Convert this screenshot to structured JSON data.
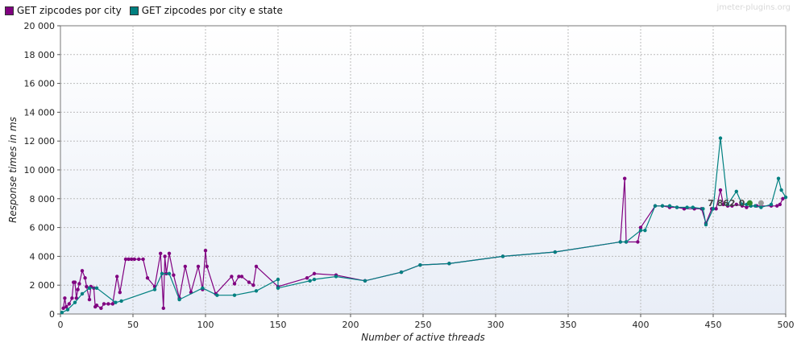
{
  "watermark": "jmeter-plugins.org",
  "colors": {
    "city": "#800080",
    "city_state": "#008080",
    "grid": "#bbbbbb",
    "plot_bg_top": "#ffffff",
    "plot_bg_bottom": "#e9eef7"
  },
  "chart_data": {
    "type": "line",
    "title": "",
    "xlabel": "Number of active threads",
    "ylabel": "Response times in ms",
    "xlim": [
      0,
      500
    ],
    "ylim": [
      0,
      20000
    ],
    "x_ticks": [
      0,
      50,
      100,
      150,
      200,
      250,
      300,
      350,
      400,
      450,
      500
    ],
    "y_ticks": [
      0,
      2000,
      4000,
      6000,
      8000,
      10000,
      12000,
      14000,
      16000,
      18000,
      20000
    ],
    "x_tick_labels": [
      "0",
      "50",
      "100",
      "150",
      "200",
      "250",
      "300",
      "350",
      "400",
      "450",
      "500"
    ],
    "y_tick_labels": [
      "0",
      "2 000",
      "4 000",
      "6 000",
      "8 000",
      "10 000",
      "12 000",
      "14 000",
      "16 000",
      "18 000",
      "20 000"
    ],
    "grid": true,
    "legend_position": "top-left",
    "series": [
      {
        "name": "GET zipcodes por city",
        "color": "#800080",
        "points": [
          [
            2,
            400
          ],
          [
            3,
            1100
          ],
          [
            4,
            500
          ],
          [
            6,
            700
          ],
          [
            8,
            1100
          ],
          [
            9,
            2200
          ],
          [
            10,
            2200
          ],
          [
            11,
            1100
          ],
          [
            12,
            1700
          ],
          [
            13,
            2100
          ],
          [
            15,
            3000
          ],
          [
            17,
            2500
          ],
          [
            18,
            1900
          ],
          [
            20,
            1000
          ],
          [
            21,
            1900
          ],
          [
            23,
            1800
          ],
          [
            24,
            500
          ],
          [
            25,
            600
          ],
          [
            28,
            400
          ],
          [
            30,
            700
          ],
          [
            33,
            700
          ],
          [
            36,
            700
          ],
          [
            39,
            2600
          ],
          [
            41,
            1500
          ],
          [
            45,
            3800
          ],
          [
            47,
            3800
          ],
          [
            49,
            3800
          ],
          [
            51,
            3800
          ],
          [
            54,
            3800
          ],
          [
            57,
            3800
          ],
          [
            60,
            2500
          ],
          [
            65,
            1900
          ],
          [
            69,
            4200
          ],
          [
            71,
            400
          ],
          [
            72,
            4000
          ],
          [
            73,
            2800
          ],
          [
            75,
            4200
          ],
          [
            78,
            2700
          ],
          [
            82,
            1100
          ],
          [
            86,
            3300
          ],
          [
            90,
            1500
          ],
          [
            95,
            3300
          ],
          [
            98,
            1700
          ],
          [
            100,
            4400
          ],
          [
            101,
            3300
          ],
          [
            107,
            1400
          ],
          [
            118,
            2600
          ],
          [
            120,
            2100
          ],
          [
            123,
            2600
          ],
          [
            125,
            2600
          ],
          [
            130,
            2200
          ],
          [
            133,
            2000
          ],
          [
            135,
            3300
          ],
          [
            150,
            1900
          ],
          [
            170,
            2500
          ],
          [
            175,
            2800
          ],
          [
            190,
            2700
          ],
          [
            210,
            2300
          ],
          [
            235,
            2900
          ],
          [
            248,
            3400
          ],
          [
            268,
            3500
          ],
          [
            305,
            4000
          ],
          [
            341,
            4300
          ],
          [
            386,
            5000
          ],
          [
            389,
            9400
          ],
          [
            390,
            5000
          ],
          [
            398,
            5000
          ],
          [
            400,
            6000
          ],
          [
            410,
            7500
          ],
          [
            415,
            7500
          ],
          [
            420,
            7400
          ],
          [
            425,
            7400
          ],
          [
            430,
            7300
          ],
          [
            437,
            7300
          ],
          [
            442,
            7300
          ],
          [
            445,
            6300
          ],
          [
            449,
            7300
          ],
          [
            452,
            7300
          ],
          [
            455,
            8600
          ],
          [
            457,
            7600
          ],
          [
            460,
            7500
          ],
          [
            463,
            7500
          ],
          [
            466,
            7600
          ],
          [
            470,
            7500
          ],
          [
            473,
            7400
          ],
          [
            476,
            7500
          ],
          [
            480,
            7500
          ],
          [
            490,
            7500
          ],
          [
            494,
            7500
          ],
          [
            496,
            7600
          ],
          [
            498,
            8000
          ]
        ]
      },
      {
        "name": "GET zipcodes por city e state",
        "color": "#008080",
        "points": [
          [
            1,
            100
          ],
          [
            5,
            300
          ],
          [
            10,
            800
          ],
          [
            15,
            1400
          ],
          [
            20,
            1800
          ],
          [
            25,
            1800
          ],
          [
            38,
            800
          ],
          [
            42,
            900
          ],
          [
            65,
            1700
          ],
          [
            70,
            2800
          ],
          [
            75,
            2800
          ],
          [
            82,
            1000
          ],
          [
            98,
            1800
          ],
          [
            108,
            1300
          ],
          [
            120,
            1300
          ],
          [
            135,
            1600
          ],
          [
            150,
            2400
          ],
          [
            150,
            1800
          ],
          [
            172,
            2300
          ],
          [
            175,
            2400
          ],
          [
            190,
            2600
          ],
          [
            210,
            2300
          ],
          [
            235,
            2900
          ],
          [
            248,
            3400
          ],
          [
            268,
            3500
          ],
          [
            305,
            4000
          ],
          [
            341,
            4300
          ],
          [
            386,
            5000
          ],
          [
            390,
            5000
          ],
          [
            400,
            5800
          ],
          [
            403,
            5800
          ],
          [
            410,
            7500
          ],
          [
            415,
            7500
          ],
          [
            420,
            7500
          ],
          [
            425,
            7400
          ],
          [
            432,
            7400
          ],
          [
            436,
            7400
          ],
          [
            443,
            7300
          ],
          [
            445,
            6200
          ],
          [
            450,
            7300
          ],
          [
            455,
            12200
          ],
          [
            460,
            7600
          ],
          [
            466,
            8500
          ],
          [
            470,
            7600
          ],
          [
            473,
            7600
          ],
          [
            476,
            7500
          ],
          [
            479,
            7500
          ],
          [
            483,
            7400
          ],
          [
            490,
            7600
          ],
          [
            495,
            9400
          ],
          [
            497,
            8600
          ],
          [
            500,
            8100
          ]
        ]
      }
    ],
    "annotation": {
      "text": "7 862.0",
      "x": 473,
      "y": 7700
    }
  }
}
